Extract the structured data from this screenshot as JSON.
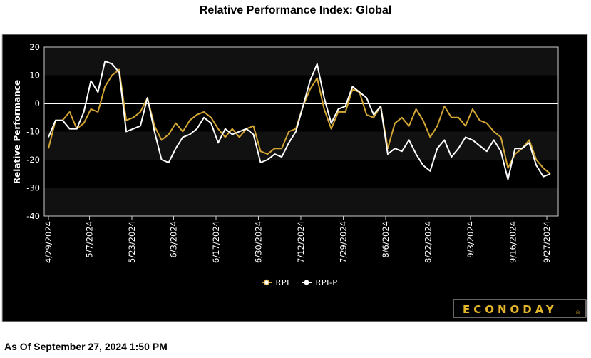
{
  "chart_data": {
    "type": "line",
    "title": "Relative Performance Index: Global",
    "xlabel": "",
    "ylabel": "Relative Performance",
    "ylim": [
      -40,
      20
    ],
    "yticks": [
      20,
      10,
      0,
      -10,
      -20,
      -30,
      -40
    ],
    "grid": "alternating horizontal bands",
    "legend_position": "bottom-center",
    "x_tick_labels": [
      {
        "label": "4/29/2024",
        "index": 0
      },
      {
        "label": "5/7/2024",
        "index": 5.8
      },
      {
        "label": "5/23/2024",
        "index": 11.8
      },
      {
        "label": "6/3/2024",
        "index": 17.7
      },
      {
        "label": "6/17/2024",
        "index": 23.7
      },
      {
        "label": "6/30/2024",
        "index": 29.7
      },
      {
        "label": "7/12/2024",
        "index": 35.7
      },
      {
        "label": "7/29/2024",
        "index": 41.7
      },
      {
        "label": "8/6/2024",
        "index": 47.7
      },
      {
        "label": "8/22/2024",
        "index": 53.7
      },
      {
        "label": "9/3/2024",
        "index": 59.7
      },
      {
        "label": "9/16/2024",
        "index": 65.7
      },
      {
        "label": "9/27/2024",
        "index": 70.5
      }
    ],
    "series": [
      {
        "name": "RPI",
        "color": "#d4a634",
        "values": [
          -16,
          -6,
          -6,
          -3,
          -9,
          -7,
          -2,
          -3,
          6,
          10,
          12,
          -6,
          -5,
          -3,
          2,
          -8,
          -13,
          -11,
          -7,
          -10,
          -6,
          -4,
          -3,
          -5,
          -9,
          -12,
          -9,
          -12,
          -9,
          -8,
          -17,
          -18,
          -16,
          -16,
          -10,
          -9,
          -1,
          5,
          9,
          -2,
          -9,
          -3,
          -3,
          5,
          4,
          -4,
          -5,
          -1,
          -16,
          -7,
          -5,
          -8,
          -2,
          -6,
          -12,
          -8,
          -1,
          -5,
          -5,
          -8,
          -2,
          -6,
          -7,
          -10,
          -12,
          -23,
          -18,
          -16,
          -13,
          -20,
          -23,
          -25
        ]
      },
      {
        "name": "RPI-P",
        "color": "#ffffff",
        "values": [
          -12,
          -6,
          -6,
          -9,
          -9,
          -3,
          8,
          4,
          15,
          14,
          11,
          -10,
          -9,
          -8,
          2,
          -10,
          -20,
          -21,
          -16,
          -12,
          -11,
          -9,
          -5,
          -7,
          -14,
          -9,
          -11,
          -10,
          -9,
          -11,
          -21,
          -20,
          -18,
          -19,
          -14,
          -10,
          -1,
          8,
          14,
          2,
          -7,
          -2,
          -1,
          6,
          4,
          2,
          -4,
          -1,
          -18,
          -16,
          -17,
          -13,
          -18,
          -22,
          -24,
          -16,
          -13,
          -19,
          -16,
          -12,
          -13,
          -15,
          -17,
          -13,
          -17,
          -27,
          -16,
          -16,
          -14,
          -22,
          -26,
          -25
        ]
      }
    ]
  },
  "header": {
    "title": "Relative Performance Index: Global"
  },
  "legend": {
    "items": [
      "RPI",
      "RPI-P"
    ]
  },
  "logo": {
    "text": "ECONODAY",
    "mark": "®"
  },
  "footer": {
    "as_of": "As Of September 27, 2024 1:50 PM"
  }
}
